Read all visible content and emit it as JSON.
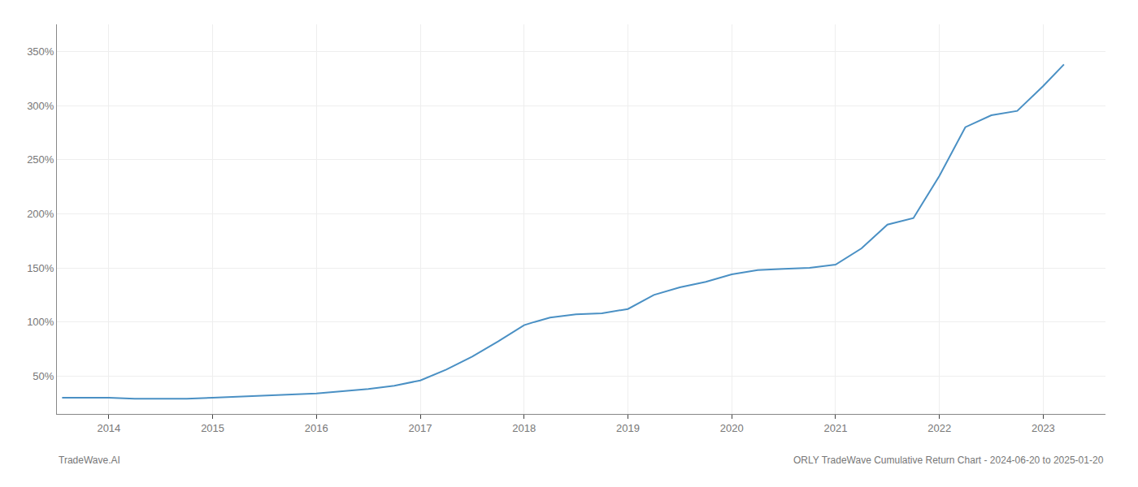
{
  "chart_data": {
    "type": "line",
    "annotations": [
      "TradeWave.AI",
      "ORLY TradeWave Cumulative Return Chart - 2024-06-20 to 2025-01-20"
    ],
    "x": [
      2013.55,
      2014.0,
      2014.25,
      2014.5,
      2014.75,
      2015.0,
      2015.25,
      2015.5,
      2015.75,
      2016.0,
      2016.25,
      2016.5,
      2016.75,
      2017.0,
      2017.25,
      2017.5,
      2017.75,
      2018.0,
      2018.1,
      2018.25,
      2018.5,
      2018.75,
      2019.0,
      2019.25,
      2019.5,
      2019.75,
      2020.0,
      2020.25,
      2020.5,
      2020.75,
      2021.0,
      2021.25,
      2021.5,
      2021.75,
      2022.0,
      2022.25,
      2022.5,
      2022.75,
      2023.0,
      2023.2
    ],
    "values": [
      30,
      30,
      29,
      29,
      29,
      30,
      31,
      32,
      33,
      34,
      36,
      38,
      41,
      46,
      56,
      68,
      82,
      97,
      100,
      104,
      107,
      108,
      112,
      125,
      132,
      137,
      144,
      148,
      149,
      150,
      153,
      168,
      190,
      196,
      235,
      280,
      291,
      295,
      318,
      338
    ],
    "color": "#4a90c4",
    "xlim": [
      2013.5,
      2023.6
    ],
    "xticks": [
      2014,
      2015,
      2016,
      2017,
      2018,
      2019,
      2020,
      2021,
      2022,
      2023
    ],
    "ylim": [
      15,
      375
    ],
    "yticks": [
      {
        "value": 50,
        "label": "50%"
      },
      {
        "value": 100,
        "label": "100%"
      },
      {
        "value": 150,
        "label": "150%"
      },
      {
        "value": 200,
        "label": "200%"
      },
      {
        "value": 250,
        "label": "250%"
      },
      {
        "value": 300,
        "label": "300%"
      },
      {
        "value": 350,
        "label": "350%"
      }
    ],
    "grid": true
  }
}
